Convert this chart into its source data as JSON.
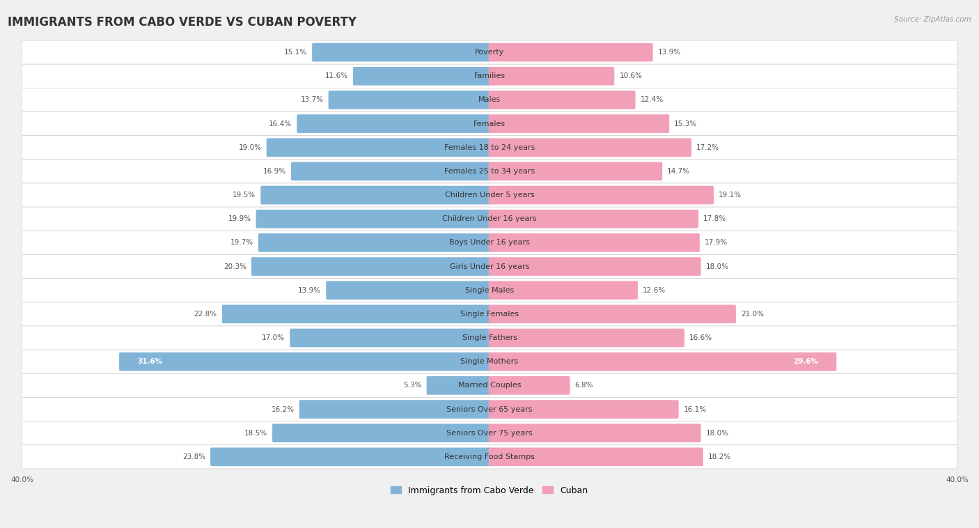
{
  "title": "IMMIGRANTS FROM CABO VERDE VS CUBAN POVERTY",
  "source": "Source: ZipAtlas.com",
  "categories": [
    "Poverty",
    "Families",
    "Males",
    "Females",
    "Females 18 to 24 years",
    "Females 25 to 34 years",
    "Children Under 5 years",
    "Children Under 16 years",
    "Boys Under 16 years",
    "Girls Under 16 years",
    "Single Males",
    "Single Females",
    "Single Fathers",
    "Single Mothers",
    "Married Couples",
    "Seniors Over 65 years",
    "Seniors Over 75 years",
    "Receiving Food Stamps"
  ],
  "cabo_verde_values": [
    15.1,
    11.6,
    13.7,
    16.4,
    19.0,
    16.9,
    19.5,
    19.9,
    19.7,
    20.3,
    13.9,
    22.8,
    17.0,
    31.6,
    5.3,
    16.2,
    18.5,
    23.8
  ],
  "cuban_values": [
    13.9,
    10.6,
    12.4,
    15.3,
    17.2,
    14.7,
    19.1,
    17.8,
    17.9,
    18.0,
    12.6,
    21.0,
    16.6,
    29.6,
    6.8,
    16.1,
    18.0,
    18.2
  ],
  "cabo_verde_color": "#82b4d8",
  "cuban_color": "#f2a0b8",
  "cabo_verde_color_dark": "#5a9ec8",
  "cuban_color_dark": "#e8799a",
  "cabo_verde_label": "Immigrants from Cabo Verde",
  "cuban_label": "Cuban",
  "axis_max": 40.0,
  "background_color": "#f0f0f0",
  "row_bg_color": "#e8e8e8",
  "bar_bg_color": "#ffffff",
  "title_fontsize": 12,
  "label_fontsize": 8,
  "value_fontsize": 7.5,
  "legend_fontsize": 9
}
